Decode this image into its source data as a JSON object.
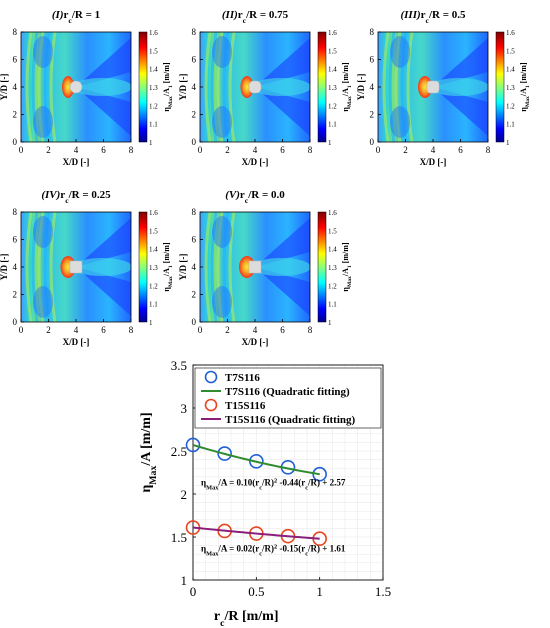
{
  "panels": [
    {
      "label": "(I)",
      "ratio_text": "r",
      "sub": "c",
      "eq": "/R = 1",
      "rc_over_R": 1.0
    },
    {
      "label": "(II)",
      "ratio_text": "r",
      "sub": "c",
      "eq": "/R = 0.75",
      "rc_over_R": 0.75
    },
    {
      "label": "(III)",
      "ratio_text": "r",
      "sub": "c",
      "eq": "/R = 0.5",
      "rc_over_R": 0.5
    },
    {
      "label": "(IV)",
      "ratio_text": "r",
      "sub": "c",
      "eq": "/R = 0.25",
      "rc_over_R": 0.25
    },
    {
      "label": "(V)",
      "ratio_text": "r",
      "sub": "c",
      "eq": "/R = 0.0",
      "rc_over_R": 0.0
    }
  ],
  "heatmap_axes": {
    "xlabel": "X/D [-]",
    "ylabel": "Y/D [-]",
    "xticks": [
      "0",
      "2",
      "4",
      "6",
      "8"
    ],
    "yticks": [
      "0",
      "2",
      "4",
      "6",
      "8"
    ],
    "xlim": [
      0,
      8
    ],
    "ylim": [
      0,
      8
    ],
    "colorbar_ticks": [
      "1",
      "1.1",
      "1.2",
      "1.3",
      "1.4",
      "1.5",
      "1.6"
    ],
    "colorbar_label_main": "η",
    "colorbar_label_sub": "Max",
    "colorbar_label_rest": "/A",
    "colorbar_label_sub2": "1",
    "colorbar_label_units": " [m/m]",
    "colorbar_range": [
      1.0,
      1.6
    ]
  },
  "chart_data": {
    "type": "scatter",
    "xlabel_main": "r",
    "xlabel_sub": "c",
    "xlabel_rest": "/R [m/m]",
    "ylabel_main": "η",
    "ylabel_sub": "Max",
    "ylabel_rest": "/A [m/m]",
    "xlim": [
      0,
      1.5
    ],
    "ylim": [
      1,
      3.5
    ],
    "xticks": [
      "0",
      "0.5",
      "1",
      "1.5"
    ],
    "yticks": [
      "1",
      "1.5",
      "2",
      "2.5",
      "3",
      "3.5"
    ],
    "grid": true,
    "legend_position": "top-left",
    "series": [
      {
        "name": "T7S116",
        "kind": "markers",
        "color": "#1f5fd6",
        "x": [
          0,
          0.25,
          0.5,
          0.75,
          1.0
        ],
        "y": [
          2.57,
          2.47,
          2.38,
          2.31,
          2.23
        ]
      },
      {
        "name": "T7S116 (Quadratic fitting)",
        "kind": "line",
        "color": "#2e8b2e",
        "coef": [
          0.1,
          -0.44,
          2.57
        ]
      },
      {
        "name": "T15S116",
        "kind": "markers",
        "color": "#e8451e",
        "x": [
          0,
          0.25,
          0.5,
          0.75,
          1.0
        ],
        "y": [
          1.61,
          1.57,
          1.54,
          1.51,
          1.48
        ]
      },
      {
        "name": "T15S116 (Quadratic fitting)",
        "kind": "line",
        "color": "#8a1f7a",
        "coef": [
          0.02,
          -0.15,
          1.61
        ]
      }
    ],
    "annotations": [
      {
        "pre": "η",
        "sub1": "Max",
        "mid": "/A = 0.10(r",
        "sub2": "c",
        "mid2": "/R)",
        "sup": "2",
        "tail": " -0.44(r",
        "sub3": "c",
        "end": "/R) + 2.57"
      },
      {
        "pre": "η",
        "sub1": "Max",
        "mid": "/A = 0.02(r",
        "sub2": "c",
        "mid2": "/R)",
        "sup": "2",
        "tail": " -0.15(r",
        "sub3": "c",
        "end": "/R) + 1.61"
      }
    ]
  },
  "colors": {
    "ring_blue": "#1f5fd6",
    "fit_green": "#2e8b2e",
    "ring_red": "#e8451e",
    "fit_purple": "#8a1f7a"
  }
}
